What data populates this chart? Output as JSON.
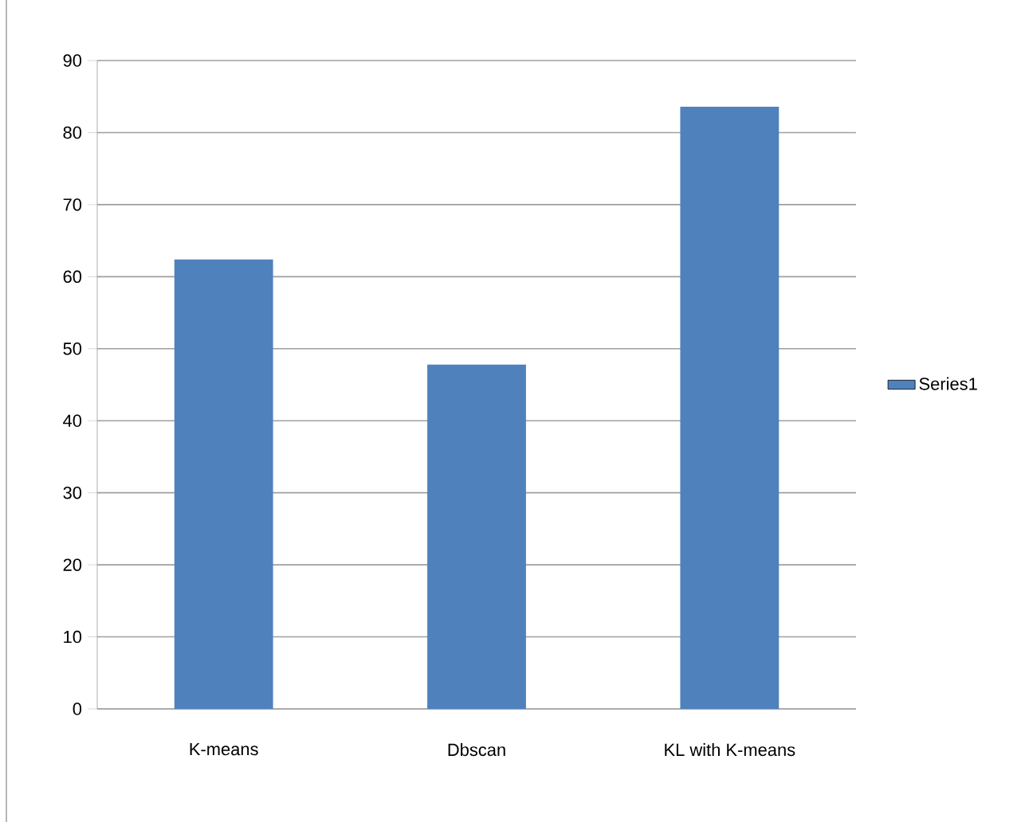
{
  "chart_data": {
    "type": "bar",
    "categories": [
      "K-means",
      "Dbscan",
      "KL with K-means"
    ],
    "series": [
      {
        "name": "Series1",
        "color": "#4f81bd",
        "values": [
          62.4,
          47.8,
          83.6
        ]
      }
    ],
    "ylim": [
      0,
      90
    ],
    "yticks": [
      0,
      10,
      20,
      30,
      40,
      50,
      60,
      70,
      80,
      90
    ],
    "grid": "y",
    "legend": "right"
  }
}
